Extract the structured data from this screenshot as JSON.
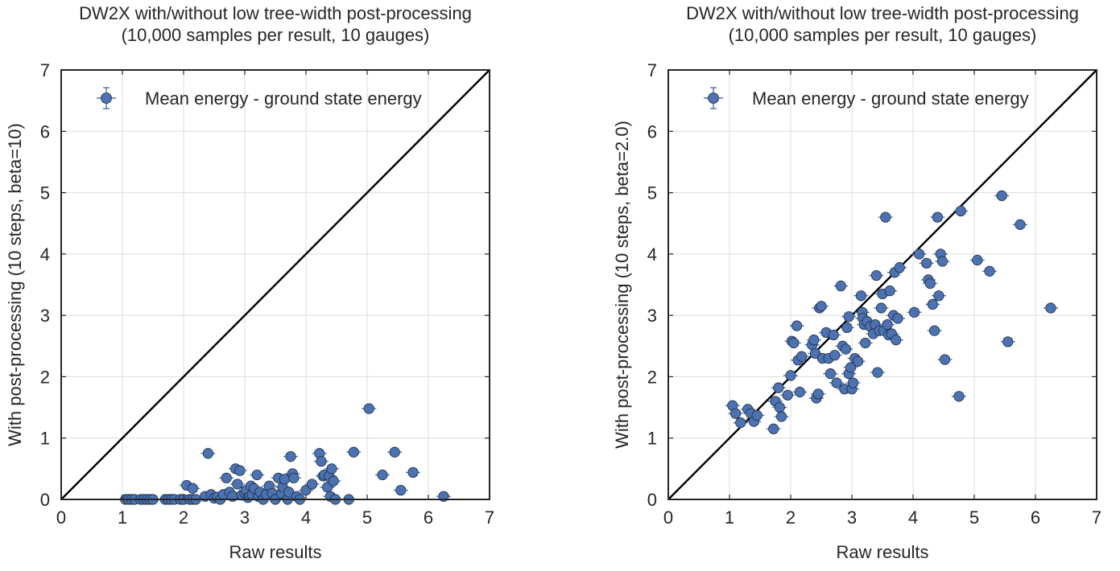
{
  "colors": {
    "marker": "#4c72b0",
    "marker_edge": "#1a2a45",
    "diagonal": "#000000",
    "grid": "#dcdcdc"
  },
  "chart_data": [
    {
      "type": "scatter",
      "title_line1": "DW2X with/without low tree-width post-processing",
      "title_line2": "(10,000 samples per result, 10 gauges)",
      "xlabel": "Raw results",
      "ylabel": "With post-processing (10 steps, beta=10)",
      "xlim": [
        0,
        7
      ],
      "ylim": [
        0,
        7
      ],
      "xticks": [
        "0",
        "1",
        "2",
        "3",
        "4",
        "5",
        "6",
        "7"
      ],
      "yticks": [
        "0",
        "1",
        "2",
        "3",
        "4",
        "5",
        "6",
        "7"
      ],
      "grid": true,
      "legend": {
        "position": "top-left",
        "label": "Mean energy - ground state energy"
      },
      "reference_line": "y = x",
      "error_bars": true,
      "points": [
        [
          1.05,
          0.0
        ],
        [
          1.1,
          0.0
        ],
        [
          1.15,
          0.0
        ],
        [
          1.2,
          0.0
        ],
        [
          1.3,
          0.0
        ],
        [
          1.35,
          0.0
        ],
        [
          1.4,
          0.0
        ],
        [
          1.45,
          0.0
        ],
        [
          1.5,
          0.0
        ],
        [
          1.7,
          0.0
        ],
        [
          1.75,
          0.0
        ],
        [
          1.8,
          0.0
        ],
        [
          1.85,
          0.0
        ],
        [
          1.95,
          0.0
        ],
        [
          2.0,
          0.0
        ],
        [
          2.1,
          0.0
        ],
        [
          2.15,
          0.0
        ],
        [
          2.2,
          0.0
        ],
        [
          2.05,
          0.23
        ],
        [
          2.15,
          0.18
        ],
        [
          2.4,
          0.75
        ],
        [
          2.35,
          0.05
        ],
        [
          2.45,
          0.08
        ],
        [
          2.5,
          0.02
        ],
        [
          2.55,
          0.04
        ],
        [
          2.6,
          0.0
        ],
        [
          2.65,
          0.08
        ],
        [
          2.7,
          0.35
        ],
        [
          2.75,
          0.12
        ],
        [
          2.8,
          0.05
        ],
        [
          2.85,
          0.5
        ],
        [
          2.88,
          0.25
        ],
        [
          2.92,
          0.47
        ],
        [
          2.95,
          0.07
        ],
        [
          3.0,
          0.1
        ],
        [
          3.02,
          0.15
        ],
        [
          3.05,
          0.03
        ],
        [
          3.1,
          0.22
        ],
        [
          3.12,
          0.08
        ],
        [
          3.15,
          0.18
        ],
        [
          3.2,
          0.4
        ],
        [
          3.22,
          0.05
        ],
        [
          3.25,
          0.12
        ],
        [
          3.3,
          0.0
        ],
        [
          3.35,
          0.08
        ],
        [
          3.4,
          0.22
        ],
        [
          3.45,
          0.1
        ],
        [
          3.5,
          0.0
        ],
        [
          3.55,
          0.35
        ],
        [
          3.6,
          0.1
        ],
        [
          3.62,
          0.2
        ],
        [
          3.65,
          0.33
        ],
        [
          3.7,
          0.0
        ],
        [
          3.72,
          0.12
        ],
        [
          3.75,
          0.7
        ],
        [
          3.78,
          0.42
        ],
        [
          3.8,
          0.35
        ],
        [
          3.85,
          0.05
        ],
        [
          3.9,
          0.0
        ],
        [
          4.0,
          0.15
        ],
        [
          4.1,
          0.25
        ],
        [
          4.22,
          0.75
        ],
        [
          4.25,
          0.62
        ],
        [
          4.28,
          0.38
        ],
        [
          4.3,
          0.4
        ],
        [
          4.35,
          0.2
        ],
        [
          4.38,
          0.38
        ],
        [
          4.4,
          0.05
        ],
        [
          4.42,
          0.5
        ],
        [
          4.45,
          0.3
        ],
        [
          4.48,
          0.0
        ],
        [
          4.7,
          0.0
        ],
        [
          4.78,
          0.77
        ],
        [
          5.03,
          1.48
        ],
        [
          5.25,
          0.4
        ],
        [
          5.45,
          0.77
        ],
        [
          5.55,
          0.15
        ],
        [
          5.75,
          0.44
        ],
        [
          6.25,
          0.05
        ]
      ]
    },
    {
      "type": "scatter",
      "title_line1": "DW2X with/without low tree-width post-processing",
      "title_line2": "(10,000 samples per result, 10 gauges)",
      "xlabel": "Raw results",
      "ylabel": "With post-processing (10 steps, beta=2.0)",
      "xlim": [
        0,
        7
      ],
      "ylim": [
        0,
        7
      ],
      "xticks": [
        "0",
        "1",
        "2",
        "3",
        "4",
        "5",
        "6",
        "7"
      ],
      "yticks": [
        "0",
        "1",
        "2",
        "3",
        "4",
        "5",
        "6",
        "7"
      ],
      "grid": true,
      "legend": {
        "position": "top-left",
        "label": "Mean energy - ground state energy"
      },
      "reference_line": "y = x",
      "error_bars": true,
      "points": [
        [
          1.05,
          1.53
        ],
        [
          1.1,
          1.4
        ],
        [
          1.18,
          1.25
        ],
        [
          1.3,
          1.47
        ],
        [
          1.35,
          1.4
        ],
        [
          1.4,
          1.27
        ],
        [
          1.45,
          1.37
        ],
        [
          1.72,
          1.15
        ],
        [
          1.75,
          1.6
        ],
        [
          1.8,
          1.82
        ],
        [
          1.82,
          1.5
        ],
        [
          1.85,
          1.35
        ],
        [
          1.95,
          1.7
        ],
        [
          2.0,
          2.02
        ],
        [
          2.02,
          2.58
        ],
        [
          2.05,
          2.55
        ],
        [
          2.1,
          2.83
        ],
        [
          2.12,
          2.27
        ],
        [
          2.15,
          1.75
        ],
        [
          2.18,
          2.33
        ],
        [
          2.35,
          2.52
        ],
        [
          2.38,
          2.6
        ],
        [
          2.4,
          2.38
        ],
        [
          2.42,
          1.65
        ],
        [
          2.45,
          1.72
        ],
        [
          2.47,
          3.12
        ],
        [
          2.5,
          3.15
        ],
        [
          2.52,
          2.3
        ],
        [
          2.58,
          2.72
        ],
        [
          2.62,
          2.3
        ],
        [
          2.65,
          2.05
        ],
        [
          2.7,
          2.68
        ],
        [
          2.72,
          2.35
        ],
        [
          2.75,
          1.9
        ],
        [
          2.82,
          3.48
        ],
        [
          2.85,
          2.5
        ],
        [
          2.88,
          1.8
        ],
        [
          2.9,
          2.45
        ],
        [
          2.92,
          2.8
        ],
        [
          2.95,
          2.98
        ],
        [
          2.95,
          2.05
        ],
        [
          2.98,
          2.15
        ],
        [
          3.0,
          1.8
        ],
        [
          3.02,
          1.9
        ],
        [
          3.05,
          2.3
        ],
        [
          3.1,
          2.25
        ],
        [
          3.15,
          3.32
        ],
        [
          3.17,
          3.05
        ],
        [
          3.18,
          2.95
        ],
        [
          3.2,
          2.85
        ],
        [
          3.22,
          2.55
        ],
        [
          3.25,
          2.9
        ],
        [
          3.3,
          2.82
        ],
        [
          3.35,
          2.7
        ],
        [
          3.38,
          2.85
        ],
        [
          3.4,
          3.65
        ],
        [
          3.42,
          2.07
        ],
        [
          3.45,
          2.75
        ],
        [
          3.48,
          3.12
        ],
        [
          3.5,
          3.35
        ],
        [
          3.52,
          2.75
        ],
        [
          3.55,
          4.6
        ],
        [
          3.58,
          2.85
        ],
        [
          3.6,
          2.68
        ],
        [
          3.62,
          3.4
        ],
        [
          3.65,
          2.7
        ],
        [
          3.68,
          3.0
        ],
        [
          3.7,
          3.7
        ],
        [
          3.72,
          2.6
        ],
        [
          3.75,
          2.95
        ],
        [
          3.78,
          3.78
        ],
        [
          4.02,
          3.05
        ],
        [
          4.1,
          4.0
        ],
        [
          4.22,
          3.85
        ],
        [
          4.25,
          3.58
        ],
        [
          4.28,
          3.52
        ],
        [
          4.32,
          3.18
        ],
        [
          4.35,
          2.75
        ],
        [
          4.4,
          4.6
        ],
        [
          4.42,
          3.32
        ],
        [
          4.45,
          4.0
        ],
        [
          4.48,
          3.88
        ],
        [
          4.52,
          2.28
        ],
        [
          4.75,
          1.68
        ],
        [
          4.78,
          4.7
        ],
        [
          5.05,
          3.9
        ],
        [
          5.25,
          3.72
        ],
        [
          5.45,
          4.95
        ],
        [
          5.55,
          2.57
        ],
        [
          5.75,
          4.48
        ],
        [
          6.25,
          3.12
        ]
      ]
    }
  ]
}
